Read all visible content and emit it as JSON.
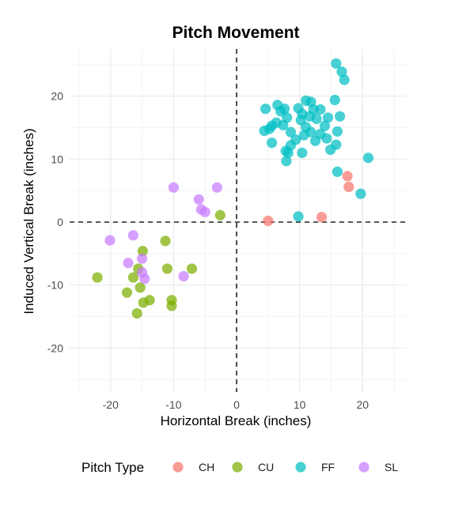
{
  "chart_data": {
    "type": "scatter",
    "title": "Pitch Movement",
    "xlabel": "Horizontal Break (inches)",
    "ylabel": "Induced Vertical Break (inches)",
    "xlim": [
      -26.5,
      27
    ],
    "ylim": [
      -27,
      27.5
    ],
    "xticks": [
      -20,
      -10,
      0,
      10,
      20
    ],
    "yticks": [
      -20,
      -10,
      0,
      10,
      20
    ],
    "grid": true,
    "reference_lines": {
      "x": 0,
      "y": 0,
      "style": "dashed"
    },
    "legend": {
      "title": "Pitch Type",
      "position": "bottom"
    },
    "series": [
      {
        "name": "CH",
        "color": "#F8766D",
        "points": [
          [
            5.0,
            0.2
          ],
          [
            13.5,
            0.8
          ],
          [
            17.6,
            7.3
          ],
          [
            17.8,
            5.6
          ]
        ]
      },
      {
        "name": "CU",
        "color": "#7CAE00",
        "points": [
          [
            -2.6,
            1.1
          ],
          [
            -11.3,
            -3.0
          ],
          [
            -14.9,
            -4.6
          ],
          [
            -22.1,
            -8.8
          ],
          [
            -17.4,
            -11.2
          ],
          [
            -15.6,
            -7.4
          ],
          [
            -16.4,
            -8.8
          ],
          [
            -11.0,
            -7.4
          ],
          [
            -7.1,
            -7.4
          ],
          [
            -15.3,
            -10.4
          ],
          [
            -13.8,
            -12.4
          ],
          [
            -10.3,
            -12.4
          ],
          [
            -14.8,
            -12.8
          ],
          [
            -10.3,
            -13.3
          ],
          [
            -15.8,
            -14.5
          ]
        ]
      },
      {
        "name": "FF",
        "color": "#00BFC4",
        "points": [
          [
            15.8,
            25.2
          ],
          [
            16.7,
            23.9
          ],
          [
            17.1,
            22.6
          ],
          [
            15.6,
            19.4
          ],
          [
            11.0,
            19.3
          ],
          [
            11.8,
            19.1
          ],
          [
            6.5,
            18.6
          ],
          [
            4.6,
            18.0
          ],
          [
            7.6,
            18.0
          ],
          [
            9.8,
            18.1
          ],
          [
            7.0,
            17.6
          ],
          [
            12.2,
            17.9
          ],
          [
            13.3,
            17.9
          ],
          [
            10.4,
            17.2
          ],
          [
            11.6,
            16.8
          ],
          [
            14.5,
            16.6
          ],
          [
            16.4,
            16.8
          ],
          [
            8.0,
            16.6
          ],
          [
            10.2,
            16.2
          ],
          [
            12.7,
            16.4
          ],
          [
            6.3,
            15.8
          ],
          [
            7.4,
            15.4
          ],
          [
            11.0,
            15.1
          ],
          [
            14.0,
            15.3
          ],
          [
            5.6,
            15.3
          ],
          [
            5.2,
            14.8
          ],
          [
            4.4,
            14.5
          ],
          [
            8.6,
            14.3
          ],
          [
            11.8,
            14.3
          ],
          [
            13.3,
            14.0
          ],
          [
            16.0,
            14.4
          ],
          [
            10.7,
            13.8
          ],
          [
            14.3,
            13.3
          ],
          [
            9.4,
            13.1
          ],
          [
            12.5,
            12.9
          ],
          [
            5.6,
            12.6
          ],
          [
            8.6,
            12.2
          ],
          [
            15.8,
            12.3
          ],
          [
            7.8,
            11.3
          ],
          [
            10.4,
            11.0
          ],
          [
            14.9,
            11.5
          ],
          [
            8.2,
            11.0
          ],
          [
            7.9,
            9.7
          ],
          [
            20.9,
            10.2
          ],
          [
            16.0,
            8.0
          ],
          [
            19.7,
            4.5
          ],
          [
            9.8,
            0.9
          ]
        ]
      },
      {
        "name": "SL",
        "color": "#C77CFF",
        "points": [
          [
            -10.0,
            5.5
          ],
          [
            -3.1,
            5.5
          ],
          [
            -6.0,
            3.6
          ],
          [
            -5.6,
            2.0
          ],
          [
            -5.0,
            1.6
          ],
          [
            -20.1,
            -2.9
          ],
          [
            -16.4,
            -2.1
          ],
          [
            -15.0,
            -5.8
          ],
          [
            -17.2,
            -6.5
          ],
          [
            -15.0,
            -8.0
          ],
          [
            -14.6,
            -9.0
          ],
          [
            -8.4,
            -8.6
          ]
        ]
      }
    ]
  }
}
